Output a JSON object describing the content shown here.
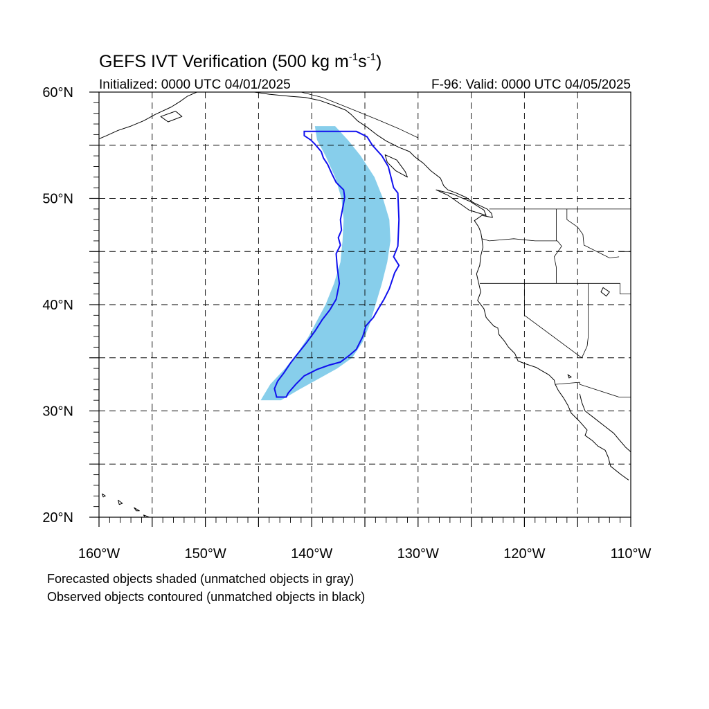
{
  "title": {
    "prefix": "GEFS IVT Verification (500 kg m",
    "exp1": "-1",
    "mid": "s",
    "exp2": "-1",
    "suffix": ")"
  },
  "subtitle_left": "Initialized: 0000 UTC 04/01/2025",
  "subtitle_right": "F-96: Valid: 0000 UTC 04/05/2025",
  "captions": [
    "Forecasted objects shaded (unmatched objects in gray)",
    "Observed objects contoured (unmatched objects in black)"
  ],
  "map": {
    "lon_range": [
      -160,
      -110
    ],
    "lat_range": [
      20,
      60
    ],
    "lon_ticks": [
      -160,
      -150,
      -140,
      -130,
      -120,
      -110
    ],
    "lat_ticks": [
      20,
      30,
      40,
      50,
      60
    ],
    "grid_lons": [
      -155,
      -150,
      -145,
      -140,
      -135,
      -130,
      -125,
      -120,
      -115
    ],
    "grid_lats": [
      25,
      30,
      35,
      40,
      45,
      50,
      55
    ],
    "lon_labels": [
      "160°W",
      "150°W",
      "140°W",
      "130°W",
      "120°W",
      "110°W"
    ],
    "lat_labels": [
      "20°N",
      "30°N",
      "40°N",
      "50°N",
      "60°N"
    ],
    "colors": {
      "forecast_fill": "#87ceeb",
      "observed_contour": "#1010ee",
      "coast": "#000000",
      "grid": "#000000"
    }
  },
  "forecast_object": {
    "left_edge": [
      [
        56.8,
        -139.7
      ],
      [
        55.5,
        -139.5
      ],
      [
        54.0,
        -138.7
      ],
      [
        52.0,
        -137.8
      ],
      [
        50.0,
        -137.2
      ],
      [
        48.0,
        -137.0
      ],
      [
        46.0,
        -137.1
      ],
      [
        44.0,
        -137.3
      ],
      [
        42.0,
        -137.9
      ],
      [
        40.0,
        -138.7
      ],
      [
        38.5,
        -139.5
      ],
      [
        37.0,
        -140.3
      ],
      [
        35.5,
        -141.3
      ],
      [
        34.0,
        -142.5
      ],
      [
        32.5,
        -143.9
      ],
      [
        31.0,
        -144.8
      ]
    ],
    "right_edge": [
      [
        31.0,
        -142.9
      ],
      [
        32.0,
        -141.2
      ],
      [
        33.0,
        -139.4
      ],
      [
        34.0,
        -137.6
      ],
      [
        35.0,
        -136.2
      ],
      [
        36.5,
        -135.2
      ],
      [
        38.0,
        -134.6
      ],
      [
        40.0,
        -134.0
      ],
      [
        42.0,
        -133.4
      ],
      [
        44.0,
        -132.9
      ],
      [
        46.0,
        -132.6
      ],
      [
        48.0,
        -132.7
      ],
      [
        50.0,
        -133.3
      ],
      [
        52.0,
        -134.1
      ],
      [
        54.0,
        -135.4
      ],
      [
        55.5,
        -136.6
      ],
      [
        56.8,
        -137.8
      ]
    ]
  },
  "observed_object": {
    "contour": [
      [
        56.3,
        -140.5
      ],
      [
        56.3,
        -135.8
      ],
      [
        55.8,
        -134.8
      ],
      [
        55.0,
        -134.3
      ],
      [
        54.0,
        -133.4
      ],
      [
        53.0,
        -132.8
      ],
      [
        52.2,
        -132.6
      ],
      [
        51.0,
        -132.3
      ],
      [
        50.5,
        -131.9
      ],
      [
        48.0,
        -131.8
      ],
      [
        45.5,
        -131.9
      ],
      [
        44.5,
        -132.3
      ],
      [
        43.7,
        -131.8
      ],
      [
        43.0,
        -132.2
      ],
      [
        41.5,
        -132.7
      ],
      [
        40.5,
        -133.2
      ],
      [
        39.5,
        -133.8
      ],
      [
        38.8,
        -134.2
      ],
      [
        38.0,
        -134.9
      ],
      [
        37.0,
        -135.2
      ],
      [
        35.8,
        -135.8
      ],
      [
        35.2,
        -136.5
      ],
      [
        34.6,
        -137.3
      ],
      [
        34.3,
        -138.4
      ],
      [
        33.9,
        -139.5
      ],
      [
        33.3,
        -140.7
      ],
      [
        32.5,
        -141.5
      ],
      [
        31.7,
        -142.2
      ],
      [
        31.3,
        -142.4
      ],
      [
        31.3,
        -143.3
      ],
      [
        32.1,
        -143.5
      ],
      [
        32.8,
        -143.2
      ],
      [
        33.6,
        -142.6
      ],
      [
        34.5,
        -142.0
      ],
      [
        35.4,
        -141.3
      ],
      [
        36.4,
        -140.5
      ],
      [
        37.5,
        -139.7
      ],
      [
        38.6,
        -139.0
      ],
      [
        39.5,
        -138.3
      ],
      [
        40.5,
        -137.7
      ],
      [
        42.0,
        -137.4
      ],
      [
        43.5,
        -137.6
      ],
      [
        44.8,
        -137.7
      ],
      [
        45.6,
        -137.3
      ],
      [
        46.3,
        -137.5
      ],
      [
        47.0,
        -137.2
      ],
      [
        48.0,
        -137.3
      ],
      [
        49.0,
        -137.1
      ],
      [
        50.1,
        -136.9
      ],
      [
        50.8,
        -137.0
      ],
      [
        51.5,
        -137.7
      ],
      [
        52.3,
        -138.1
      ],
      [
        53.2,
        -138.5
      ],
      [
        53.8,
        -138.9
      ],
      [
        54.4,
        -139.1
      ],
      [
        55.1,
        -139.7
      ],
      [
        55.5,
        -140.1
      ],
      [
        55.9,
        -140.7
      ],
      [
        56.3,
        -140.7
      ]
    ]
  },
  "coastlines": {
    "alaska_south": [
      [
        60.0,
        -150.8
      ],
      [
        59.6,
        -151.7
      ],
      [
        59.1,
        -152.4
      ],
      [
        58.6,
        -153.2
      ],
      [
        57.9,
        -154.7
      ],
      [
        57.3,
        -155.8
      ],
      [
        56.8,
        -157.0
      ],
      [
        56.4,
        -158.2
      ],
      [
        55.9,
        -159.3
      ],
      [
        55.6,
        -160.0
      ]
    ],
    "gulf_of_alaska": [
      [
        60.0,
        -145.4
      ],
      [
        59.8,
        -144.0
      ],
      [
        59.6,
        -142.0
      ],
      [
        59.5,
        -140.6
      ],
      [
        59.2,
        -139.2
      ],
      [
        58.7,
        -137.8
      ],
      [
        58.3,
        -136.8
      ],
      [
        57.9,
        -136.3
      ],
      [
        57.3,
        -135.7
      ],
      [
        56.7,
        -134.8
      ],
      [
        56.0,
        -133.9
      ],
      [
        55.4,
        -133.0
      ],
      [
        54.8,
        -131.8
      ],
      [
        54.4,
        -130.8
      ],
      [
        53.9,
        -130.3
      ],
      [
        53.3,
        -129.5
      ],
      [
        52.6,
        -128.8
      ],
      [
        51.9,
        -127.9
      ],
      [
        51.2,
        -127.6
      ],
      [
        50.8,
        -127.2
      ],
      [
        50.5,
        -126.4
      ],
      [
        50.1,
        -125.5
      ],
      [
        49.6,
        -124.8
      ],
      [
        49.0,
        -123.5
      ],
      [
        48.6,
        -123.1
      ],
      [
        48.2,
        -123.0
      ],
      [
        48.4,
        -124.0
      ],
      [
        47.9,
        -124.7
      ],
      [
        47.3,
        -124.3
      ],
      [
        46.8,
        -124.1
      ],
      [
        46.2,
        -124.0
      ],
      [
        45.4,
        -123.9
      ],
      [
        44.6,
        -124.1
      ],
      [
        43.7,
        -124.2
      ],
      [
        42.9,
        -124.5
      ],
      [
        42.0,
        -124.3
      ],
      [
        41.2,
        -124.1
      ],
      [
        40.4,
        -124.4
      ],
      [
        39.6,
        -123.8
      ],
      [
        38.8,
        -123.6
      ],
      [
        38.0,
        -122.9
      ],
      [
        37.8,
        -122.5
      ],
      [
        37.2,
        -122.4
      ],
      [
        36.6,
        -121.9
      ],
      [
        36.0,
        -121.5
      ],
      [
        35.4,
        -120.9
      ],
      [
        34.7,
        -120.6
      ],
      [
        34.4,
        -119.8
      ],
      [
        34.1,
        -118.9
      ],
      [
        33.8,
        -118.4
      ],
      [
        33.4,
        -117.7
      ],
      [
        32.9,
        -117.2
      ],
      [
        32.5,
        -117.1
      ],
      [
        31.9,
        -116.8
      ],
      [
        31.2,
        -116.3
      ],
      [
        30.5,
        -115.9
      ],
      [
        29.8,
        -115.6
      ],
      [
        29.0,
        -114.8
      ],
      [
        28.2,
        -114.1
      ],
      [
        27.7,
        -114.3
      ],
      [
        27.2,
        -113.6
      ],
      [
        26.7,
        -113.1
      ],
      [
        26.3,
        -112.4
      ],
      [
        25.6,
        -112.1
      ],
      [
        24.8,
        -111.9
      ],
      [
        24.0,
        -110.9
      ],
      [
        23.5,
        -110.2
      ]
    ],
    "gulf_of_california_east": [
      [
        31.6,
        -114.8
      ],
      [
        30.8,
        -114.6
      ],
      [
        30.0,
        -114.3
      ],
      [
        29.3,
        -113.4
      ],
      [
        28.6,
        -112.5
      ],
      [
        27.9,
        -111.6
      ],
      [
        27.3,
        -111.1
      ],
      [
        26.6,
        -110.5
      ],
      [
        25.8,
        -109.6
      ],
      [
        25.1,
        -108.8
      ],
      [
        24.3,
        -107.9
      ],
      [
        23.6,
        -107.0
      ],
      [
        23.0,
        -106.4
      ]
    ],
    "hawaii_1": [
      [
        22.2,
        -159.7
      ],
      [
        22.0,
        -159.4
      ],
      [
        21.9,
        -159.6
      ],
      [
        22.2,
        -159.7
      ]
    ],
    "hawaii_2": [
      [
        21.6,
        -158.2
      ],
      [
        21.3,
        -157.8
      ],
      [
        21.2,
        -158.1
      ],
      [
        21.6,
        -158.2
      ]
    ],
    "hawaii_3": [
      [
        20.9,
        -156.7
      ],
      [
        20.6,
        -156.2
      ],
      [
        20.6,
        -156.5
      ],
      [
        20.9,
        -156.7
      ]
    ],
    "hawaii_4": [
      [
        20.2,
        -155.8
      ],
      [
        19.9,
        -155.0
      ],
      [
        19.6,
        -155.5
      ],
      [
        20.2,
        -155.8
      ]
    ],
    "haida_gwaii": [
      [
        54.1,
        -133.1
      ],
      [
        53.6,
        -132.0
      ],
      [
        52.5,
        -131.2
      ],
      [
        52.0,
        -131.0
      ],
      [
        52.6,
        -132.1
      ],
      [
        53.4,
        -132.9
      ],
      [
        54.1,
        -133.1
      ]
    ],
    "vancouver_island": [
      [
        50.8,
        -128.3
      ],
      [
        50.3,
        -127.2
      ],
      [
        49.6,
        -126.2
      ],
      [
        48.9,
        -125.2
      ],
      [
        48.4,
        -123.6
      ],
      [
        48.9,
        -123.8
      ],
      [
        49.7,
        -125.1
      ],
      [
        50.4,
        -126.7
      ],
      [
        50.8,
        -128.3
      ]
    ],
    "kodiak": [
      [
        58.2,
        -152.8
      ],
      [
        57.7,
        -152.2
      ],
      [
        57.2,
        -153.5
      ],
      [
        57.7,
        -154.2
      ],
      [
        58.2,
        -152.8
      ]
    ]
  },
  "boundaries": {
    "us_canada_49": [
      [
        49.0,
        -123.3
      ],
      [
        49.0,
        -110.0
      ]
    ],
    "alaska_canada": [
      [
        60.0,
        -141.0
      ],
      [
        59.5,
        -139.0
      ],
      [
        58.9,
        -137.5
      ],
      [
        58.3,
        -136.0
      ],
      [
        57.4,
        -133.8
      ],
      [
        56.6,
        -131.9
      ],
      [
        55.7,
        -130.0
      ]
    ],
    "wa_or": [
      [
        46.2,
        -124.0
      ],
      [
        46.0,
        -123.3
      ],
      [
        46.2,
        -121.0
      ],
      [
        46.0,
        -119.0
      ],
      [
        46.0,
        -116.9
      ]
    ],
    "or_ca": [
      [
        42.0,
        -124.2
      ],
      [
        42.0,
        -117.0
      ]
    ],
    "or_id": [
      [
        46.0,
        -116.9
      ],
      [
        45.5,
        -116.5
      ],
      [
        44.5,
        -117.2
      ],
      [
        43.5,
        -117.0
      ],
      [
        42.0,
        -117.0
      ]
    ],
    "wa_id": [
      [
        49.0,
        -117.0
      ],
      [
        46.0,
        -117.0
      ]
    ],
    "id_mt": [
      [
        49.0,
        -116.0
      ],
      [
        48.0,
        -116.0
      ],
      [
        47.3,
        -115.0
      ],
      [
        46.6,
        -114.5
      ],
      [
        45.6,
        -114.4
      ],
      [
        44.4,
        -112.0
      ],
      [
        44.5,
        -111.1
      ]
    ],
    "ca_nv": [
      [
        42.0,
        -120.0
      ],
      [
        39.0,
        -120.0
      ],
      [
        35.0,
        -114.6
      ]
    ],
    "nv_ut": [
      [
        42.0,
        -114.0
      ],
      [
        37.0,
        -114.0
      ]
    ],
    "nv_az": [
      [
        37.0,
        -114.0
      ],
      [
        36.1,
        -114.1
      ],
      [
        35.0,
        -114.6
      ]
    ],
    "id_nv_ut": [
      [
        42.0,
        -117.0
      ],
      [
        42.0,
        -111.0
      ]
    ],
    "ut_wy": [
      [
        42.0,
        -111.0
      ],
      [
        41.0,
        -111.0
      ],
      [
        41.0,
        -110.0
      ]
    ],
    "az_mexico": [
      [
        32.7,
        -114.8
      ],
      [
        32.5,
        -114.8
      ],
      [
        31.3,
        -111.1
      ],
      [
        31.3,
        -110.0
      ]
    ],
    "ca_mexico": [
      [
        32.5,
        -117.1
      ],
      [
        32.7,
        -114.8
      ]
    ],
    "mt_wy": [
      [
        45.0,
        -111.1
      ],
      [
        45.0,
        -110.0
      ]
    ]
  },
  "lakes": {
    "great_salt_lake": [
      [
        41.6,
        -112.6
      ],
      [
        41.2,
        -112.0
      ],
      [
        40.8,
        -112.3
      ],
      [
        41.2,
        -112.8
      ],
      [
        41.6,
        -112.6
      ]
    ],
    "salton": [
      [
        33.4,
        -115.9
      ],
      [
        33.2,
        -115.6
      ],
      [
        33.1,
        -115.8
      ],
      [
        33.4,
        -115.9
      ]
    ]
  }
}
